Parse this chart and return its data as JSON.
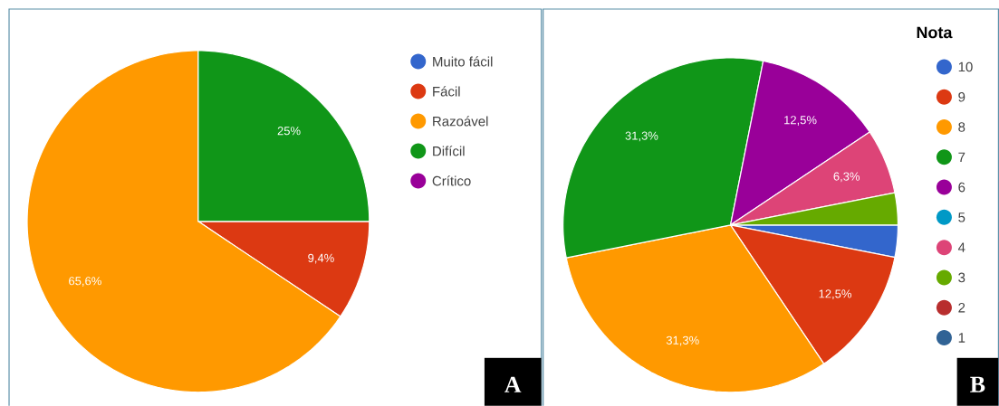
{
  "chart_data": [
    {
      "type": "pie",
      "categories": [
        "Muito fácil",
        "Fácil",
        "Razoável",
        "Difícil",
        "Crítico"
      ],
      "values": [
        0,
        9.4,
        65.6,
        25,
        0
      ],
      "colors": [
        "#3366cc",
        "#dc3912",
        "#ff9900",
        "#109618",
        "#990099"
      ],
      "value_labels": [
        null,
        "9,4%",
        "65,6%",
        "25%",
        null
      ],
      "legend": "right",
      "annotations": [
        "A"
      ]
    },
    {
      "type": "pie",
      "legend_title": "Nota",
      "categories": [
        "10",
        "9",
        "8",
        "7",
        "6",
        "5",
        "4",
        "3",
        "2",
        "1"
      ],
      "values": [
        3.1,
        12.5,
        31.3,
        31.3,
        12.5,
        0,
        6.3,
        3.1,
        0,
        0
      ],
      "colors": [
        "#3366cc",
        "#dc3912",
        "#ff9900",
        "#109618",
        "#990099",
        "#0099c6",
        "#dd4477",
        "#66aa00",
        "#b82e2e",
        "#316395"
      ],
      "value_labels": [
        null,
        "12,5%",
        "31,3%",
        "31,3%",
        "12,5%",
        null,
        "6,3%",
        null,
        null,
        null
      ],
      "legend": "right",
      "annotations": [
        "B"
      ]
    }
  ]
}
